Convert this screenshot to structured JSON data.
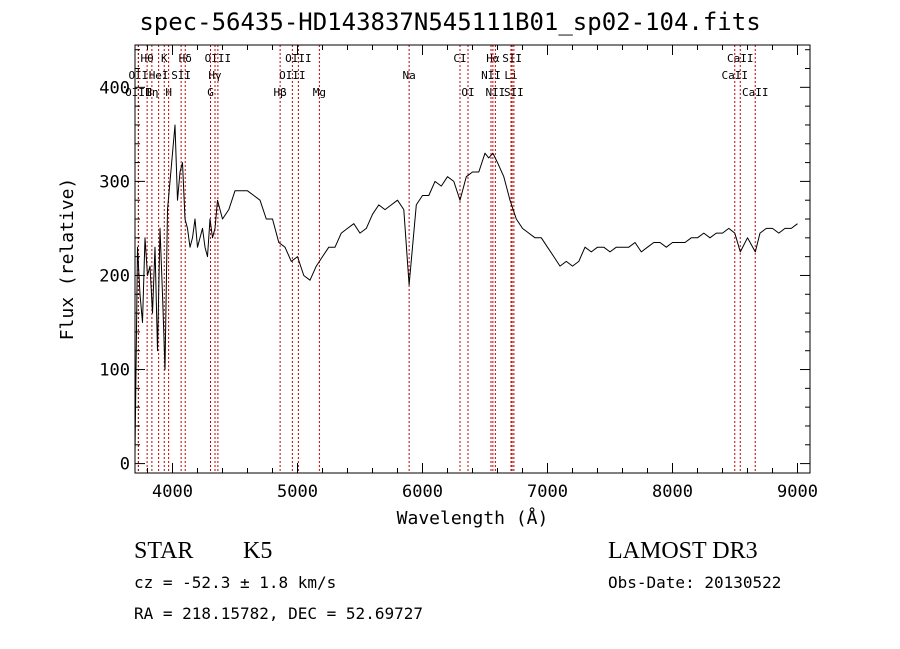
{
  "title": "spec-56435-HD143837N545111B01_sp02-104.fits",
  "info": {
    "class": "STAR",
    "subclass": "K5",
    "survey": "LAMOST DR3",
    "cz": "cz = -52.3 ± 1.8 km/s",
    "obs_date": "Obs-Date: 20130522",
    "radec": "RA = 218.15782, DEC =  52.69727"
  },
  "chart_data": {
    "type": "line",
    "title": "spec-56435-HD143837N545111B01_sp02-104.fits",
    "xlabel": "Wavelength (Å)",
    "ylabel": "Flux (relative)",
    "xlim": [
      3700,
      9100
    ],
    "ylim": [
      -10,
      445
    ],
    "xticks": [
      4000,
      5000,
      6000,
      7000,
      8000,
      9000
    ],
    "yticks": [
      0,
      100,
      200,
      300,
      400
    ],
    "grid": false,
    "line_color": "#000000",
    "marker_color": "#c00000",
    "lines": [
      {
        "label": "Hθ",
        "x": 3797,
        "row": 0
      },
      {
        "label": "K",
        "x": 3934,
        "row": 0
      },
      {
        "label": "Hδ",
        "x": 4102,
        "row": 0
      },
      {
        "label": "OIII",
        "x": 4363,
        "row": 0
      },
      {
        "label": "OIII",
        "x": 5007,
        "row": 0
      },
      {
        "label": "CI",
        "x": 6300,
        "row": 0
      },
      {
        "label": "Hα",
        "x": 6563,
        "row": 0
      },
      {
        "label": "SII",
        "x": 6717,
        "row": 0
      },
      {
        "label": "CaII",
        "x": 8542,
        "row": 0
      },
      {
        "label": "OII",
        "x": 3727,
        "row": 1
      },
      {
        "label": "HeI",
        "x": 3889,
        "row": 1
      },
      {
        "label": "SII",
        "x": 4069,
        "row": 1
      },
      {
        "label": "Hγ",
        "x": 4340,
        "row": 1
      },
      {
        "label": "OIII",
        "x": 4959,
        "row": 1
      },
      {
        "label": "Na",
        "x": 5893,
        "row": 1
      },
      {
        "label": "NII",
        "x": 6548,
        "row": 1
      },
      {
        "label": "Li",
        "x": 6708,
        "row": 1
      },
      {
        "label": "CaII",
        "x": 8498,
        "row": 1
      },
      {
        "label": "OIII",
        "x": 3727,
        "row": 2
      },
      {
        "label": "Hη",
        "x": 3835,
        "row": 2
      },
      {
        "label": "H",
        "x": 3969,
        "row": 2
      },
      {
        "label": "G",
        "x": 4304,
        "row": 2
      },
      {
        "label": "Hβ",
        "x": 4861,
        "row": 2
      },
      {
        "label": "Mg",
        "x": 5175,
        "row": 2
      },
      {
        "label": "OI",
        "x": 6364,
        "row": 2
      },
      {
        "label": "NII",
        "x": 6583,
        "row": 2
      },
      {
        "label": "SII",
        "x": 6731,
        "row": 2
      },
      {
        "label": "CaII",
        "x": 8662,
        "row": 2
      }
    ],
    "series": [
      {
        "x": [
          3700,
          3720,
          3740,
          3760,
          3780,
          3800,
          3820,
          3840,
          3860,
          3880,
          3900,
          3920,
          3940,
          3960,
          3980,
          4000,
          4020,
          4040,
          4060,
          4080,
          4100,
          4120,
          4140,
          4160,
          4180,
          4200,
          4220,
          4240,
          4260,
          4280,
          4300,
          4320,
          4340,
          4360,
          4380,
          4400,
          4450,
          4500,
          4550,
          4600,
          4650,
          4700,
          4750,
          4800,
          4850,
          4900,
          4950,
          5000,
          5050,
          5100,
          5150,
          5200,
          5250,
          5300,
          5350,
          5400,
          5450,
          5500,
          5550,
          5600,
          5650,
          5700,
          5750,
          5800,
          5850,
          5893,
          5950,
          6000,
          6050,
          6100,
          6150,
          6200,
          6250,
          6300,
          6350,
          6400,
          6450,
          6500,
          6530,
          6563,
          6600,
          6650,
          6700,
          6750,
          6800,
          6850,
          6900,
          6950,
          7000,
          7050,
          7100,
          7150,
          7200,
          7250,
          7300,
          7350,
          7400,
          7450,
          7500,
          7550,
          7600,
          7650,
          7700,
          7750,
          7800,
          7850,
          7900,
          7950,
          8000,
          8050,
          8100,
          8150,
          8200,
          8250,
          8300,
          8350,
          8400,
          8450,
          8498,
          8542,
          8600,
          8662,
          8700,
          8750,
          8800,
          8850,
          8900,
          8950,
          9000
        ],
        "y": [
          10,
          230,
          180,
          150,
          240,
          200,
          210,
          160,
          230,
          120,
          250,
          180,
          100,
          270,
          300,
          330,
          360,
          280,
          310,
          320,
          260,
          250,
          230,
          240,
          260,
          230,
          240,
          250,
          230,
          220,
          260,
          240,
          250,
          280,
          270,
          260,
          270,
          290,
          290,
          290,
          285,
          280,
          260,
          260,
          235,
          230,
          215,
          220,
          200,
          195,
          210,
          220,
          230,
          230,
          245,
          250,
          255,
          245,
          250,
          265,
          275,
          270,
          275,
          280,
          270,
          190,
          275,
          285,
          285,
          300,
          295,
          305,
          300,
          280,
          305,
          310,
          310,
          330,
          325,
          330,
          320,
          305,
          280,
          260,
          250,
          245,
          240,
          240,
          230,
          220,
          210,
          215,
          210,
          215,
          230,
          225,
          230,
          230,
          225,
          230,
          230,
          230,
          235,
          225,
          230,
          235,
          235,
          230,
          235,
          235,
          235,
          240,
          240,
          245,
          240,
          245,
          245,
          250,
          245,
          225,
          240,
          225,
          245,
          250,
          250,
          245,
          250,
          250,
          255
        ]
      }
    ]
  }
}
